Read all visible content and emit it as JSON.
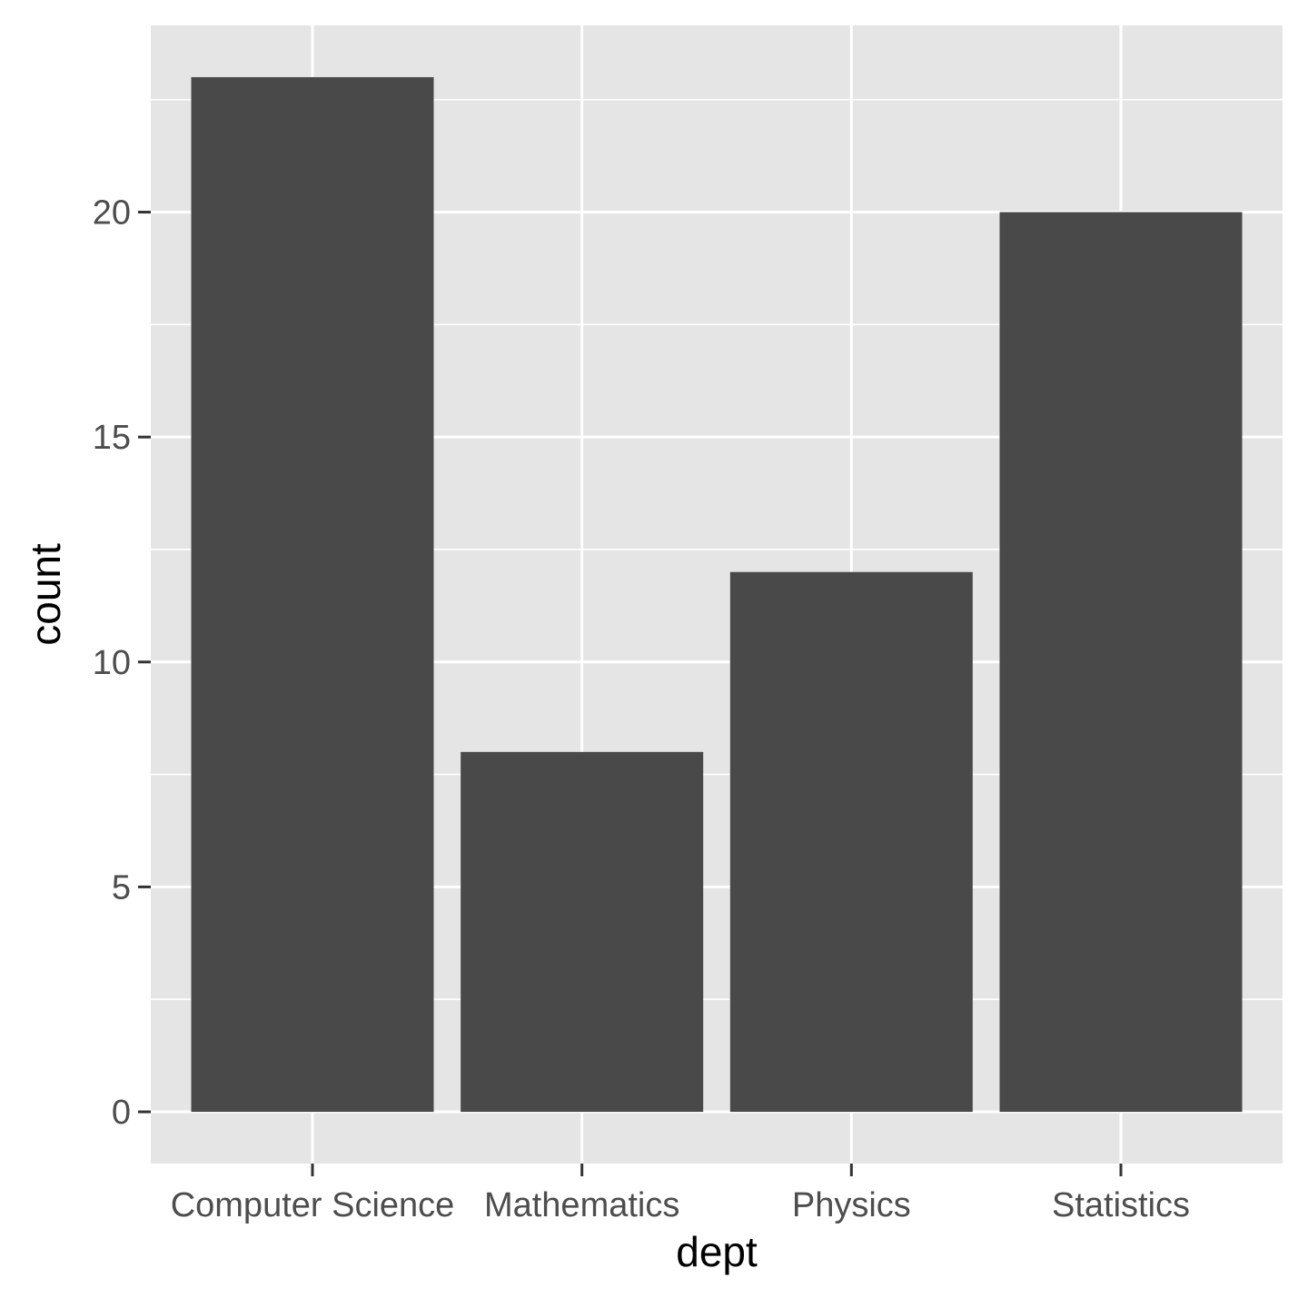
{
  "chart_data": {
    "type": "bar",
    "categories": [
      "Computer Science",
      "Mathematics",
      "Physics",
      "Statistics"
    ],
    "values": [
      23,
      8,
      12,
      20
    ],
    "title": "",
    "xlabel": "dept",
    "ylabel": "count",
    "ylim": [
      -1.15,
      24.15
    ],
    "yticks": [
      0,
      5,
      10,
      15,
      20
    ],
    "ytick_labels": [
      "0",
      "5",
      "10",
      "15",
      "20"
    ],
    "grid": true,
    "legend": "none"
  },
  "colors": {
    "panel_background": "#e5e5e5",
    "grid_line": "#ffffff",
    "bar_fill": "#494949",
    "tick_text": "#4d4d4d",
    "tick_mark": "#333333",
    "axis_title": "#000000"
  }
}
